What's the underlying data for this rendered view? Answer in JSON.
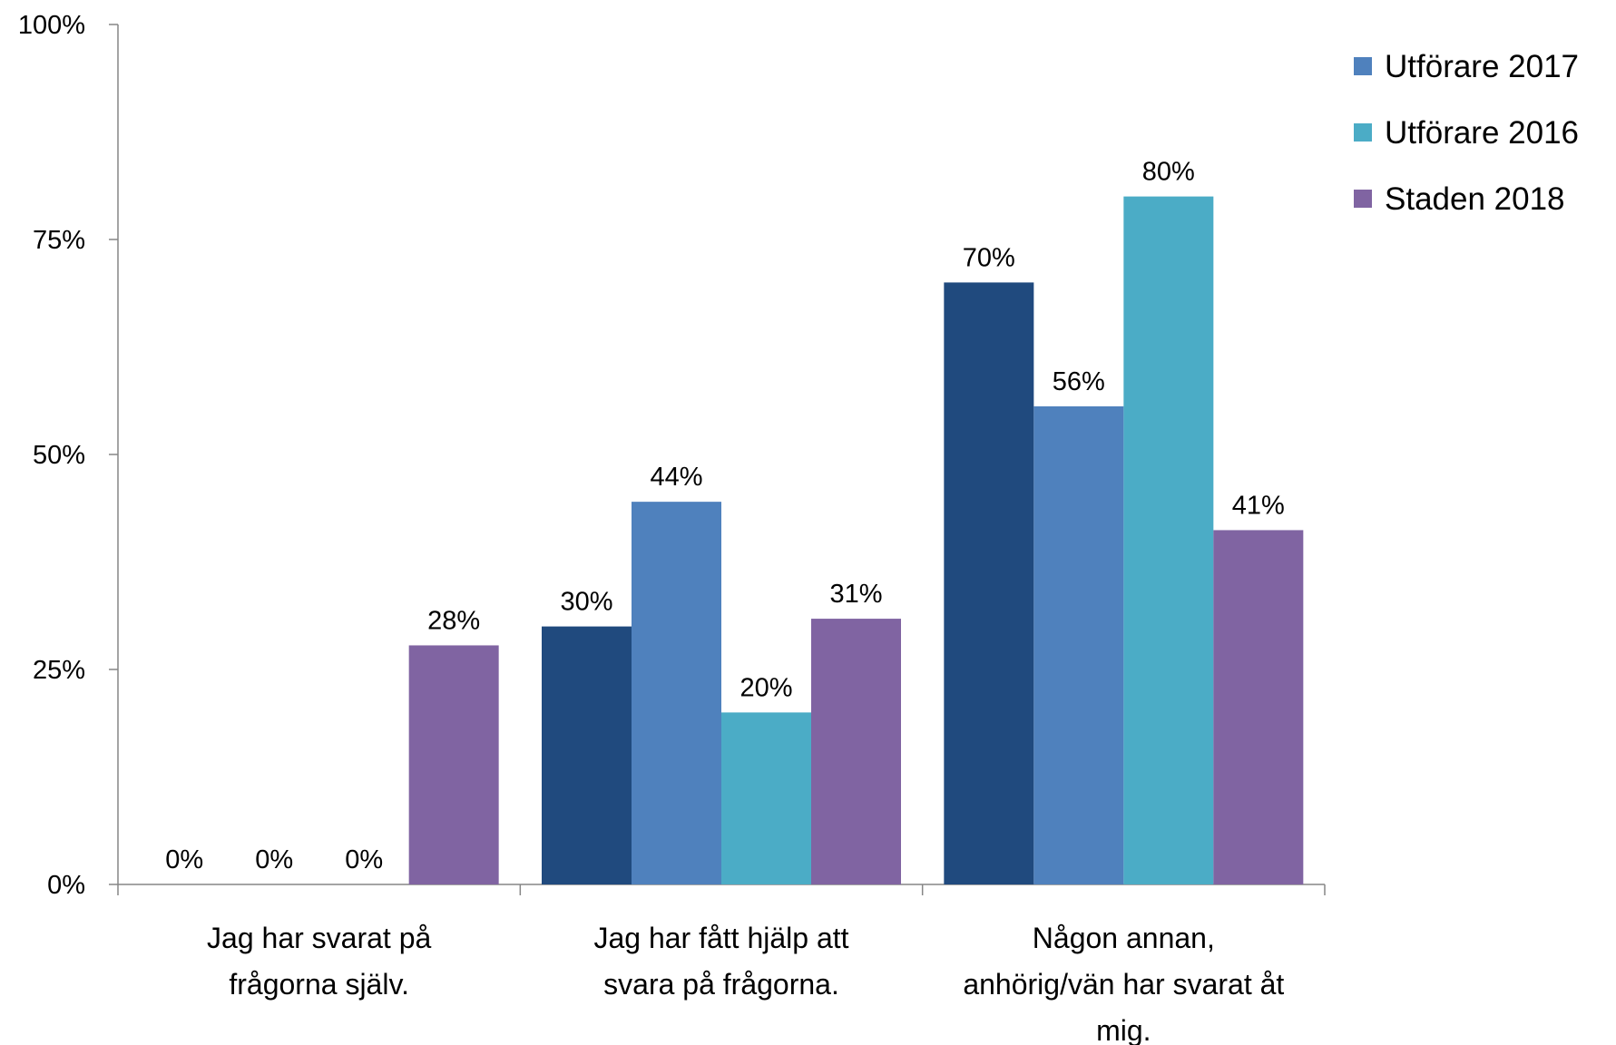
{
  "chart_data": {
    "type": "bar",
    "ylim": [
      0,
      100
    ],
    "y_ticks": [
      "0%",
      "25%",
      "50%",
      "75%",
      "100%"
    ],
    "y_tick_values": [
      0,
      25,
      50,
      75,
      100
    ],
    "grid": false,
    "legend_position": "top-right",
    "categories": [
      [
        "Jag har svarat på",
        "frågorna själv."
      ],
      [
        "Jag har fått hjälp att",
        "svara på frågorna."
      ],
      [
        "Någon annan,",
        "anhörig/vän har svarat åt",
        "mig."
      ]
    ],
    "series": [
      {
        "name": "",
        "color": "#204a7e",
        "values": [
          0,
          30,
          70
        ],
        "labels": [
          "0%",
          "30%",
          "70%"
        ]
      },
      {
        "name": "Utförare 2017",
        "color": "#4f81bd",
        "values": [
          0,
          44.5,
          55.6
        ],
        "labels": [
          "0%",
          "44%",
          "56%"
        ]
      },
      {
        "name": "Utförare 2016",
        "color": "#4bacc6",
        "values": [
          0,
          20,
          80
        ],
        "labels": [
          "0%",
          "20%",
          "80%"
        ]
      },
      {
        "name": "Staden 2018",
        "color": "#8064a2",
        "values": [
          27.8,
          30.9,
          41.2
        ],
        "labels": [
          "28%",
          "31%",
          "41%"
        ]
      }
    ]
  }
}
